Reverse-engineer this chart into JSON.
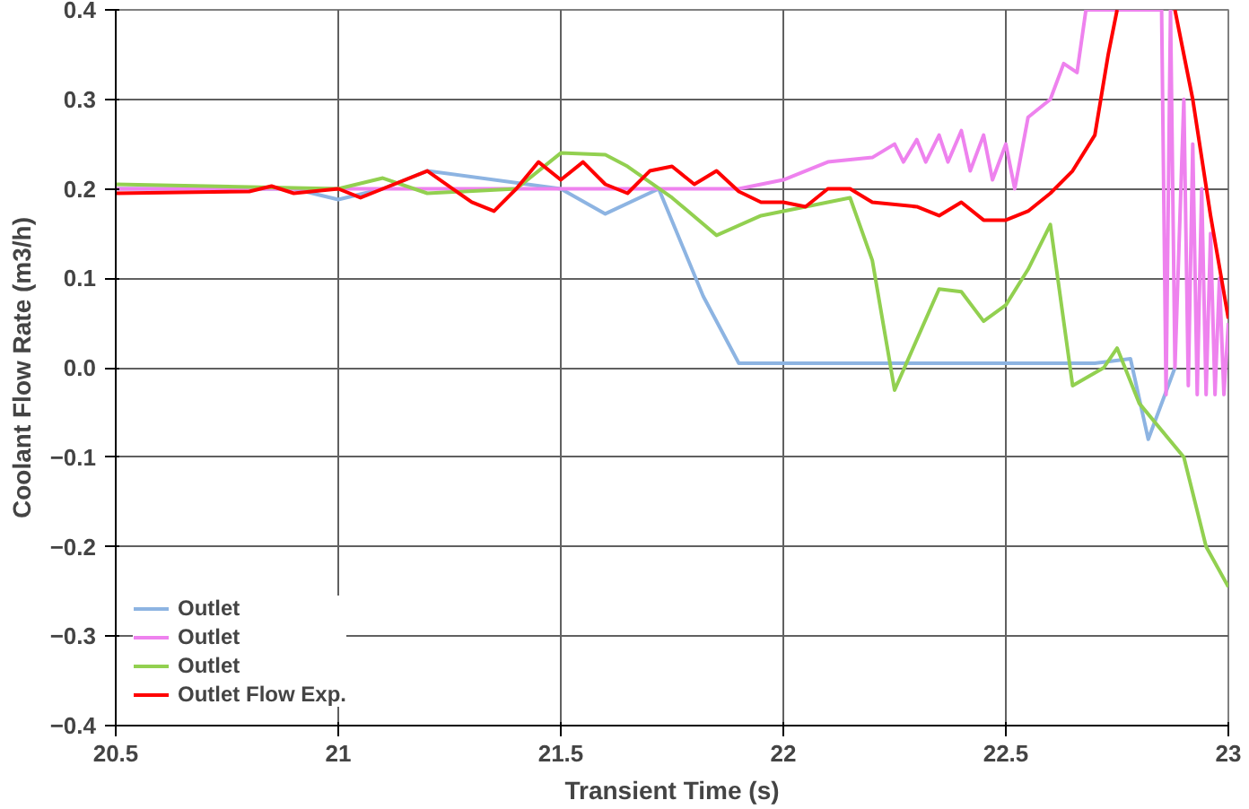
{
  "chart_data": {
    "type": "line",
    "xlabel": "Transient Time (s)",
    "ylabel": "Coolant Flow Rate (m3/h)",
    "xlim": [
      20.5,
      23
    ],
    "ylim": [
      -0.4,
      0.4
    ],
    "xticks": [
      20.5,
      21,
      21.5,
      22,
      22.5,
      23
    ],
    "yticks": [
      -0.4,
      -0.3,
      -0.2,
      -0.1,
      {
        "value": 0,
        "label": "0.0"
      },
      0.1,
      0.2,
      0.3,
      0.4
    ],
    "grid": true,
    "legend": "bottom left",
    "marker": "none",
    "line_style": "solid",
    "series": [
      {
        "name": "Outlet",
        "color": "#8db4e2",
        "x": [
          20.5,
          20.9,
          21.0,
          21.1,
          21.2,
          21.5,
          21.6,
          21.72,
          21.82,
          21.9,
          22.0,
          22.2,
          22.4,
          22.6,
          22.7,
          22.78,
          22.82,
          22.88
        ],
        "values": [
          0.2,
          0.2,
          0.188,
          0.2,
          0.22,
          0.2,
          0.172,
          0.2,
          0.08,
          0.005,
          0.005,
          0.005,
          0.005,
          0.005,
          0.005,
          0.01,
          -0.08,
          0.0
        ]
      },
      {
        "name": "Outlet",
        "color": "#ee82ee",
        "x": [
          20.5,
          21.0,
          21.5,
          21.9,
          22.0,
          22.1,
          22.2,
          22.25,
          22.27,
          22.3,
          22.32,
          22.35,
          22.37,
          22.4,
          22.42,
          22.45,
          22.47,
          22.5,
          22.52,
          22.55,
          22.6,
          22.63,
          22.66,
          22.68,
          22.85,
          22.86,
          22.87,
          22.88,
          22.9,
          22.91,
          22.92,
          22.93,
          22.94,
          22.95,
          22.96,
          22.97,
          22.98,
          22.99,
          23.0
        ],
        "values": [
          0.2,
          0.2,
          0.2,
          0.2,
          0.21,
          0.23,
          0.235,
          0.25,
          0.23,
          0.255,
          0.23,
          0.26,
          0.23,
          0.265,
          0.22,
          0.26,
          0.21,
          0.25,
          0.2,
          0.28,
          0.3,
          0.34,
          0.33,
          0.4,
          0.4,
          -0.03,
          0.4,
          0.0,
          0.3,
          -0.02,
          0.25,
          -0.03,
          0.2,
          -0.03,
          0.15,
          -0.03,
          0.1,
          -0.03,
          0.05
        ]
      },
      {
        "name": "Outlet",
        "color": "#92d050",
        "x": [
          20.5,
          21.0,
          21.1,
          21.2,
          21.4,
          21.5,
          21.6,
          21.65,
          21.75,
          21.85,
          21.95,
          22.1,
          22.15,
          22.2,
          22.25,
          22.35,
          22.4,
          22.45,
          22.5,
          22.55,
          22.6,
          22.65,
          22.72,
          22.75,
          22.8,
          22.9,
          22.95,
          23.0
        ],
        "values": [
          0.205,
          0.2,
          0.212,
          0.195,
          0.2,
          0.24,
          0.238,
          0.225,
          0.19,
          0.148,
          0.17,
          0.185,
          0.19,
          0.12,
          -0.025,
          0.088,
          0.085,
          0.052,
          0.07,
          0.11,
          0.16,
          -0.02,
          0.0,
          0.022,
          -0.04,
          -0.1,
          -0.2,
          -0.245
        ]
      },
      {
        "name": "Outlet Flow Exp.",
        "color": "#ff0000",
        "x": [
          20.5,
          20.8,
          20.85,
          20.9,
          21.0,
          21.05,
          21.1,
          21.2,
          21.3,
          21.35,
          21.4,
          21.45,
          21.5,
          21.55,
          21.6,
          21.65,
          21.7,
          21.75,
          21.8,
          21.85,
          21.9,
          21.95,
          22.0,
          22.05,
          22.1,
          22.15,
          22.2,
          22.3,
          22.35,
          22.4,
          22.45,
          22.5,
          22.55,
          22.6,
          22.65,
          22.7,
          22.73,
          22.75,
          22.8,
          22.88,
          22.92,
          22.96,
          23.0
        ],
        "values": [
          0.195,
          0.197,
          0.203,
          0.195,
          0.2,
          0.19,
          0.2,
          0.22,
          0.185,
          0.175,
          0.2,
          0.23,
          0.21,
          0.23,
          0.205,
          0.195,
          0.22,
          0.225,
          0.205,
          0.22,
          0.197,
          0.185,
          0.185,
          0.18,
          0.2,
          0.2,
          0.185,
          0.18,
          0.17,
          0.185,
          0.165,
          0.165,
          0.175,
          0.195,
          0.22,
          0.26,
          0.35,
          0.4,
          null,
          0.4,
          0.3,
          0.17,
          0.055
        ]
      }
    ]
  }
}
